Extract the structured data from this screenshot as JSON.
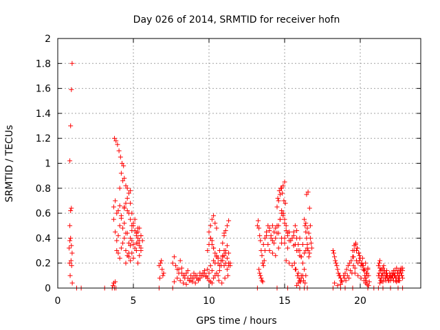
{
  "chart_data": {
    "type": "scatter",
    "title": "Day 026 of 2014, SRMTID for receiver hofn",
    "xlabel": "GPS time / hours",
    "ylabel": "SRMTID / TECUs",
    "xlim": [
      0,
      24
    ],
    "ylim": [
      0,
      2
    ],
    "xticks": [
      0,
      5,
      10,
      15,
      20
    ],
    "xtick_labels": [
      "0",
      "5",
      "10",
      "15",
      "20"
    ],
    "yticks": [
      0,
      0.2,
      0.4,
      0.6,
      0.8,
      1,
      1.2,
      1.4,
      1.6,
      1.8,
      2
    ],
    "ytick_labels": [
      "0",
      "0.2",
      "0.4",
      "0.6",
      "0.8",
      "1",
      "1.2",
      "1.4",
      "1.6",
      "1.8",
      "2"
    ],
    "grid": true,
    "marker": "+",
    "color": "#ff0000",
    "series": [
      {
        "name": "SRMTID",
        "x": [
          0.75,
          0.8,
          0.85,
          0.9,
          0.95,
          0.8,
          0.85,
          0.9,
          0.78,
          0.82,
          0.88,
          0.92,
          0.96,
          0.85,
          0.8,
          0.9,
          0.95,
          1.25,
          1.55,
          3.1,
          3.6,
          3.65,
          3.7,
          3.75,
          3.8,
          3.85,
          3.7,
          3.8,
          3.9,
          4.0,
          4.1,
          3.75,
          3.85,
          3.95,
          4.05,
          4.15,
          4.25,
          4.35,
          3.7,
          3.8,
          3.9,
          4.0,
          4.1,
          4.2,
          4.3,
          4.4,
          4.5,
          3.9,
          4.0,
          4.1,
          4.2,
          4.3,
          4.4,
          4.5,
          4.6,
          4.7,
          4.8,
          4.9,
          4.0,
          4.2,
          4.4,
          4.6,
          4.8,
          5.0,
          5.2,
          4.1,
          4.3,
          4.5,
          4.7,
          4.9,
          5.1,
          5.3,
          5.5,
          4.6,
          4.7,
          4.8,
          4.9,
          5.0,
          4.4,
          4.5,
          4.6,
          4.7,
          4.8,
          4.9,
          5.0,
          5.1,
          5.2,
          5.3,
          5.4,
          5.5,
          5.2,
          5.3,
          5.4,
          5.5,
          5.6,
          5.3,
          5.4,
          5.5,
          4.5,
          4.7,
          4.9,
          5.1,
          5.3,
          4.8,
          5.0,
          5.2,
          5.4,
          4.2,
          4.4,
          4.6,
          4.8,
          6.7,
          6.8,
          6.9,
          7.0,
          6.85,
          6.95,
          6.75,
          7.6,
          7.7,
          7.8,
          7.9,
          8.0,
          8.1,
          8.2,
          8.3,
          8.4,
          8.5,
          8.6,
          8.7,
          8.8,
          8.9,
          7.7,
          7.9,
          8.1,
          8.3,
          8.5,
          8.7,
          8.9,
          9.1,
          9.3,
          9.5,
          9.7,
          9.9,
          10.1,
          10.3,
          10.5,
          10.7,
          10.9,
          11.1,
          11.3,
          8.0,
          8.2,
          8.4,
          8.6,
          8.8,
          9.0,
          9.2,
          9.4,
          9.6,
          9.8,
          10.0,
          10.2,
          10.4,
          10.6,
          10.8,
          11.0,
          11.2,
          9.0,
          9.1,
          9.2,
          9.3,
          9.4,
          9.5,
          9.6,
          9.7,
          9.8,
          9.9,
          10.0,
          10.1,
          10.2,
          10.3,
          10.4,
          10.5,
          9.9,
          10.0,
          10.1,
          10.2,
          10.3,
          10.4,
          10.5,
          10.6,
          10.7,
          10.8,
          10.9,
          11.0,
          11.1,
          11.2,
          11.3,
          11.4,
          10.0,
          10.1,
          10.2,
          10.3,
          10.4,
          10.5,
          11.0,
          11.1,
          11.2,
          11.3,
          10.1,
          10.2,
          10.3,
          10.9,
          11.0,
          10.6,
          10.7,
          10.8,
          10.9,
          11.0,
          11.1,
          11.2,
          11.3,
          11.4,
          10.65,
          10.85,
          11.05,
          11.25,
          6.7,
          7.6,
          13.2,
          13.25,
          13.3,
          13.35,
          13.4,
          13.45,
          13.5,
          13.55,
          13.3,
          13.35,
          13.4,
          13.45,
          13.5,
          13.55,
          13.6,
          13.65,
          13.6,
          13.7,
          13.8,
          13.9,
          14.0,
          14.1,
          14.2,
          14.3,
          14.4,
          14.5,
          14.6,
          14.7,
          14.8,
          14.9,
          15.0,
          15.1,
          15.2,
          15.3,
          13.7,
          13.9,
          14.1,
          14.3,
          14.5,
          14.7,
          14.9,
          15.1,
          15.3,
          15.5,
          15.7,
          15.9,
          16.1,
          16.3,
          16.5,
          13.8,
          14.0,
          14.2,
          14.4,
          14.6,
          14.8,
          15.0,
          15.2,
          15.4,
          15.6,
          15.8,
          16.0,
          16.2,
          16.4,
          14.5,
          14.6,
          14.7,
          14.8,
          14.9,
          15.0,
          14.55,
          14.65,
          14.75,
          14.85,
          14.95,
          15.05,
          14.8,
          14.9,
          15.0,
          14.0,
          14.2,
          14.4,
          14.6,
          14.8,
          15.0,
          15.2,
          15.4,
          15.6,
          15.8,
          16.0,
          15.1,
          15.3,
          15.5,
          15.7,
          15.9,
          16.1,
          15.6,
          15.7,
          15.8,
          15.9,
          16.0,
          16.1,
          15.65,
          15.75,
          15.85,
          15.95,
          16.05,
          15.8,
          15.9,
          16.0,
          16.1,
          16.2,
          16.3,
          16.35,
          16.4,
          16.45,
          16.5,
          16.55,
          16.6,
          16.65,
          16.7,
          16.4,
          16.5,
          16.6,
          16.7,
          16.75,
          16.8,
          16.45,
          16.55,
          16.65,
          16.2,
          16.3,
          16.4,
          16.25,
          16.35,
          16.3,
          13.2,
          16.0,
          16.5,
          15.2,
          14.5,
          18.2,
          18.3,
          18.4,
          18.5,
          18.6,
          18.7,
          18.8,
          18.25,
          18.35,
          18.45,
          18.55,
          18.65,
          18.75,
          18.3,
          18.5,
          18.7,
          18.9,
          19.0,
          19.1,
          19.2,
          19.3,
          19.4,
          19.5,
          19.6,
          19.7,
          19.8,
          19.9,
          20.0,
          20.1,
          20.2,
          20.3,
          20.4,
          18.95,
          19.15,
          19.35,
          19.55,
          19.75,
          19.95,
          20.15,
          20.35,
          20.5,
          19.05,
          19.25,
          19.45,
          19.65,
          19.85,
          20.05,
          20.25,
          20.45,
          19.5,
          19.6,
          19.7,
          19.8,
          19.9,
          20.0,
          20.1,
          20.2,
          19.55,
          19.75,
          19.95,
          20.15,
          19.65,
          19.85,
          20.05,
          20.25,
          20.3,
          20.35,
          20.4,
          20.45,
          20.5,
          20.55,
          20.6,
          20.35,
          20.45,
          20.55,
          18.2,
          18.7,
          19.0,
          19.5,
          20.5,
          20.9,
          21.2,
          21.3,
          21.4,
          21.5,
          21.6,
          21.7,
          21.8,
          21.9,
          22.0,
          22.1,
          22.2,
          22.3,
          22.4,
          22.5,
          22.6,
          22.7,
          22.8,
          21.25,
          21.45,
          21.65,
          21.85,
          22.05,
          22.25,
          22.45,
          22.65,
          21.35,
          21.55,
          21.75,
          21.95,
          22.15,
          22.35,
          22.55,
          22.75,
          21.3,
          21.5,
          21.7,
          21.9,
          22.1,
          22.3,
          22.5,
          22.7,
          21.4,
          21.6,
          21.8,
          22.0,
          22.2,
          22.4,
          22.6,
          22.8,
          21.5,
          21.6,
          21.7,
          21.8,
          21.9,
          22.0,
          22.1,
          22.2,
          22.3,
          22.4,
          22.5,
          21.55,
          21.75,
          21.95,
          22.15,
          22.35,
          21.2,
          21.25,
          21.3,
          21.35,
          21.4,
          22.5,
          22.6,
          22.7,
          22.8,
          21.3,
          22.55,
          22.75,
          21.2,
          21.5,
          22.0,
          22.5,
          22.8
        ],
        "y": [
          0.32,
          0.38,
          0.4,
          0.34,
          0.28,
          0.5,
          0.62,
          0.64,
          0.2,
          0.1,
          0.22,
          0.18,
          0.04,
          1.3,
          1.02,
          1.59,
          1.8,
          0.0,
          0.0,
          0.0,
          0.0,
          0.02,
          0.04,
          0.0,
          0.05,
          0.0,
          0.65,
          0.7,
          0.6,
          0.62,
          0.66,
          1.2,
          1.18,
          1.15,
          1.1,
          1.05,
          1.0,
          0.98,
          0.55,
          0.45,
          0.38,
          0.42,
          0.5,
          0.56,
          0.48,
          0.52,
          0.44,
          0.3,
          0.28,
          0.24,
          0.32,
          0.36,
          0.4,
          0.3,
          0.26,
          0.28,
          0.34,
          0.38,
          0.62,
          0.58,
          0.64,
          0.72,
          0.68,
          0.5,
          0.44,
          0.8,
          0.86,
          0.82,
          0.76,
          0.6,
          0.55,
          0.48,
          0.42,
          0.44,
          0.36,
          0.4,
          0.46,
          0.35,
          0.65,
          0.68,
          0.62,
          0.6,
          0.55,
          0.5,
          0.52,
          0.46,
          0.42,
          0.4,
          0.38,
          0.32,
          0.36,
          0.45,
          0.48,
          0.42,
          0.38,
          0.2,
          0.26,
          0.3,
          0.2,
          0.25,
          0.28,
          0.32,
          0.36,
          0.22,
          0.24,
          0.3,
          0.34,
          0.92,
          0.88,
          0.8,
          0.78,
          0.18,
          0.2,
          0.15,
          0.12,
          0.22,
          0.1,
          0.08,
          0.2,
          0.25,
          0.18,
          0.15,
          0.12,
          0.22,
          0.16,
          0.1,
          0.08,
          0.12,
          0.14,
          0.06,
          0.1,
          0.08,
          0.05,
          0.08,
          0.06,
          0.04,
          0.03,
          0.06,
          0.05,
          0.04,
          0.07,
          0.1,
          0.12,
          0.15,
          0.18,
          0.22,
          0.26,
          0.3,
          0.25,
          0.2,
          0.18,
          0.15,
          0.12,
          0.1,
          0.08,
          0.06,
          0.08,
          0.1,
          0.12,
          0.1,
          0.09,
          0.12,
          0.14,
          0.2,
          0.24,
          0.22,
          0.18,
          0.15,
          0.12,
          0.1,
          0.08,
          0.06,
          0.08,
          0.1,
          0.12,
          0.14,
          0.1,
          0.08,
          0.06,
          0.05,
          0.04,
          0.08,
          0.1,
          0.12,
          0.3,
          0.35,
          0.4,
          0.38,
          0.32,
          0.28,
          0.25,
          0.2,
          0.18,
          0.22,
          0.26,
          0.3,
          0.28,
          0.24,
          0.2,
          0.18,
          0.45,
          0.5,
          0.55,
          0.58,
          0.52,
          0.48,
          0.42,
          0.46,
          0.5,
          0.54,
          0.4,
          0.35,
          0.32,
          0.36,
          0.44,
          0.1,
          0.14,
          0.18,
          0.22,
          0.26,
          0.3,
          0.34,
          0.28,
          0.2,
          0.06,
          0.04,
          0.08,
          0.1,
          0.0,
          0.0,
          0.5,
          0.54,
          0.48,
          0.42,
          0.38,
          0.3,
          0.26,
          0.2,
          0.15,
          0.12,
          0.1,
          0.08,
          0.06,
          0.05,
          0.18,
          0.22,
          0.35,
          0.4,
          0.45,
          0.5,
          0.48,
          0.42,
          0.38,
          0.36,
          0.4,
          0.44,
          0.5,
          0.55,
          0.6,
          0.58,
          0.52,
          0.46,
          0.42,
          0.38,
          0.3,
          0.35,
          0.4,
          0.45,
          0.5,
          0.55,
          0.6,
          0.5,
          0.45,
          0.4,
          0.35,
          0.3,
          0.25,
          0.28,
          0.32,
          0.42,
          0.46,
          0.5,
          0.48,
          0.44,
          0.4,
          0.36,
          0.32,
          0.38,
          0.42,
          0.46,
          0.4,
          0.35,
          0.3,
          0.65,
          0.7,
          0.75,
          0.8,
          0.82,
          0.85,
          0.72,
          0.78,
          0.8,
          0.76,
          0.7,
          0.68,
          0.62,
          0.6,
          0.55,
          0.3,
          0.28,
          0.26,
          0.32,
          0.36,
          0.4,
          0.44,
          0.38,
          0.34,
          0.3,
          0.26,
          0.22,
          0.2,
          0.18,
          0.15,
          0.12,
          0.1,
          0.45,
          0.5,
          0.4,
          0.35,
          0.3,
          0.25,
          0.2,
          0.15,
          0.1,
          0.08,
          0.05,
          0.02,
          0.04,
          0.06,
          0.08,
          0.1,
          0.55,
          0.5,
          0.45,
          0.4,
          0.35,
          0.3,
          0.25,
          0.28,
          0.5,
          0.52,
          0.48,
          0.44,
          0.4,
          0.36,
          0.32,
          0.75,
          0.77,
          0.64,
          0.2,
          0.15,
          0.1,
          0.06,
          0.04,
          0.0,
          0.0,
          0.0,
          0.0,
          0.0,
          0.0,
          0.3,
          0.25,
          0.2,
          0.15,
          0.1,
          0.08,
          0.05,
          0.28,
          0.22,
          0.18,
          0.12,
          0.1,
          0.06,
          0.04,
          0.02,
          0.03,
          0.1,
          0.12,
          0.15,
          0.18,
          0.2,
          0.22,
          0.25,
          0.3,
          0.35,
          0.32,
          0.28,
          0.24,
          0.2,
          0.18,
          0.15,
          0.12,
          0.08,
          0.1,
          0.14,
          0.18,
          0.22,
          0.26,
          0.24,
          0.2,
          0.16,
          0.06,
          0.08,
          0.12,
          0.16,
          0.2,
          0.18,
          0.14,
          0.1,
          0.3,
          0.34,
          0.36,
          0.32,
          0.28,
          0.24,
          0.2,
          0.15,
          0.25,
          0.3,
          0.22,
          0.18,
          0.12,
          0.1,
          0.08,
          0.06,
          0.1,
          0.08,
          0.06,
          0.12,
          0.15,
          0.1,
          0.05,
          0.04,
          0.03,
          0.02,
          0.0,
          0.0,
          0.0,
          0.0,
          0.0,
          0.0,
          0.1,
          0.08,
          0.06,
          0.12,
          0.14,
          0.1,
          0.08,
          0.06,
          0.1,
          0.12,
          0.14,
          0.1,
          0.08,
          0.06,
          0.1,
          0.12,
          0.14,
          0.12,
          0.1,
          0.08,
          0.06,
          0.08,
          0.1,
          0.12,
          0.14,
          0.06,
          0.08,
          0.1,
          0.12,
          0.1,
          0.08,
          0.06,
          0.1,
          0.04,
          0.05,
          0.06,
          0.08,
          0.1,
          0.12,
          0.14,
          0.16,
          0.15,
          0.12,
          0.1,
          0.08,
          0.06,
          0.05,
          0.06,
          0.08,
          0.16,
          0.14,
          0.12,
          0.1,
          0.08,
          0.06,
          0.1,
          0.12,
          0.14,
          0.16,
          0.12,
          0.18,
          0.14,
          0.1,
          0.08,
          0.06,
          0.18,
          0.2,
          0.16,
          0.14,
          0.1,
          0.1,
          0.12,
          0.15,
          0.16,
          0.22,
          0.08,
          0.1,
          0.0,
          0.0,
          0.0,
          0.0,
          0.0
        ]
      }
    ]
  }
}
